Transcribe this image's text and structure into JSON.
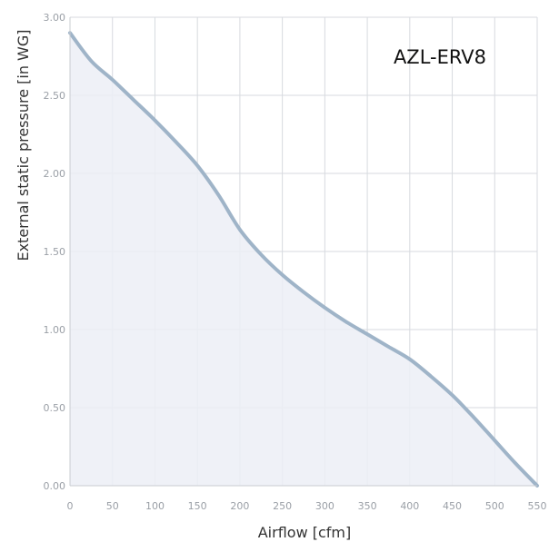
{
  "chart_data": {
    "type": "area",
    "title": "AZL-ERV8",
    "xlabel": "Airflow [cfm]",
    "ylabel": "External static pressure [in WG]",
    "xlim": [
      0,
      550
    ],
    "ylim": [
      0,
      3.0
    ],
    "x_ticks": [
      "0",
      "50",
      "100",
      "150",
      "200",
      "250",
      "300",
      "350",
      "400",
      "450",
      "500",
      "550"
    ],
    "y_ticks": [
      "0.00",
      "0.50",
      "1.00",
      "1.50",
      "2.00",
      "2.50",
      "3.00"
    ],
    "grid": true,
    "series": [
      {
        "x": [
          0,
          25,
          50,
          75,
          100,
          125,
          150,
          175,
          200,
          225,
          250,
          275,
          300,
          325,
          350,
          375,
          400,
          425,
          450,
          475,
          500,
          525,
          550
        ],
        "y": [
          2.9,
          2.72,
          2.6,
          2.47,
          2.34,
          2.2,
          2.05,
          1.86,
          1.64,
          1.48,
          1.35,
          1.24,
          1.14,
          1.05,
          0.97,
          0.89,
          0.81,
          0.7,
          0.58,
          0.44,
          0.29,
          0.14,
          0.0
        ]
      }
    ],
    "colors": {
      "line": "#9fb4c8",
      "fill": "#eceff6",
      "grid": "#d7dadf",
      "axis": "#c9ccd2"
    }
  }
}
